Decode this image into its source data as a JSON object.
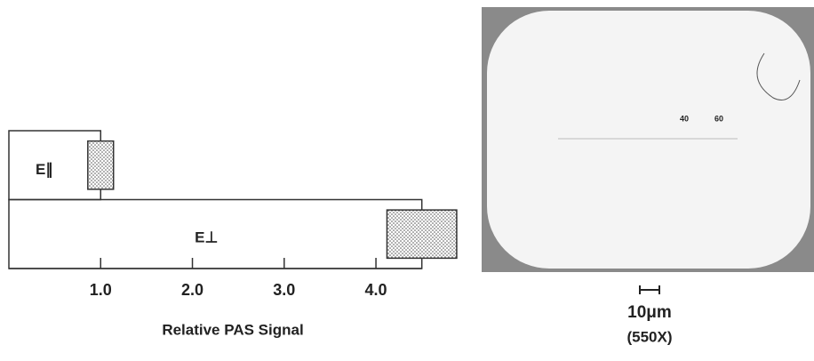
{
  "chart_data": {
    "type": "bar",
    "orientation": "horizontal",
    "x_label": "Relative PAS Signal",
    "categories": [
      "E∥",
      "E⊥"
    ],
    "values": [
      1.0,
      4.5
    ],
    "errors": [
      0.14,
      0.38
    ],
    "xlim": [
      0,
      4.9
    ],
    "xticks": [
      {
        "value": 1,
        "label": "1.0"
      },
      {
        "value": 2,
        "label": "2.0"
      },
      {
        "value": 3,
        "label": "3.0"
      },
      {
        "value": 4,
        "label": "4.0"
      }
    ],
    "color": "#333333"
  },
  "micrograph": {
    "scale_marks": [
      "40",
      "60"
    ],
    "scale_label": "10μm",
    "magnification": "(550X)"
  }
}
